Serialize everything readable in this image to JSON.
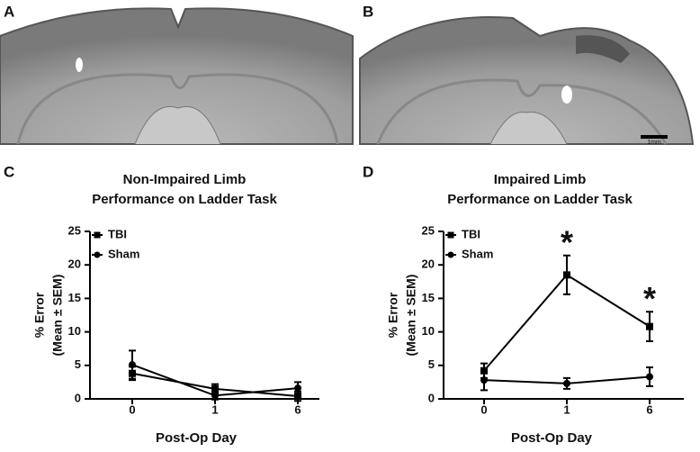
{
  "panel_labels": [
    "A",
    "B",
    "C",
    "D"
  ],
  "scale_bar": "1mm",
  "chart_data": [
    {
      "type": "line",
      "title": [
        "Non-Impaired Limb",
        "Performance on  Ladder Task"
      ],
      "ylabel": [
        "% Error",
        "(Mean ± SEM)"
      ],
      "xlabel": "Post-Op  Day",
      "categories": [
        "0",
        "1",
        "6"
      ],
      "ylim": [
        0,
        25
      ],
      "yticks": [
        0,
        5,
        10,
        15,
        20,
        25
      ],
      "legend": "upper left",
      "series": [
        {
          "name": "TBI",
          "color": "#000000",
          "marker": "square",
          "values": [
            3.8,
            1.5,
            0.4
          ],
          "errors": [
            1.0,
            0.7,
            0.7
          ]
        },
        {
          "name": "Sham",
          "color": "#000000",
          "marker": "circle",
          "values": [
            5.1,
            0.5,
            1.6
          ],
          "errors": [
            2.1,
            0.6,
            0.9
          ]
        }
      ]
    },
    {
      "type": "line",
      "title": [
        "Impaired Limb",
        "Performance on  Ladder Task"
      ],
      "ylabel": [
        "% Error",
        "(Mean ± SEM)"
      ],
      "xlabel": "Post-Op  Day",
      "categories": [
        "0",
        "1",
        "6"
      ],
      "ylim": [
        0,
        25
      ],
      "yticks": [
        0,
        5,
        10,
        15,
        20,
        25
      ],
      "legend": "upper left",
      "annotations": [
        {
          "text": "*",
          "x": "1"
        },
        {
          "text": "*",
          "x": "6"
        }
      ],
      "series": [
        {
          "name": "TBI",
          "color": "#000000",
          "marker": "square",
          "values": [
            4.2,
            18.5,
            10.8
          ],
          "errors": [
            1.1,
            2.9,
            2.2
          ]
        },
        {
          "name": "Sham",
          "color": "#000000",
          "marker": "circle",
          "values": [
            2.8,
            2.3,
            3.3
          ],
          "errors": [
            1.5,
            0.8,
            1.4
          ]
        }
      ]
    }
  ]
}
